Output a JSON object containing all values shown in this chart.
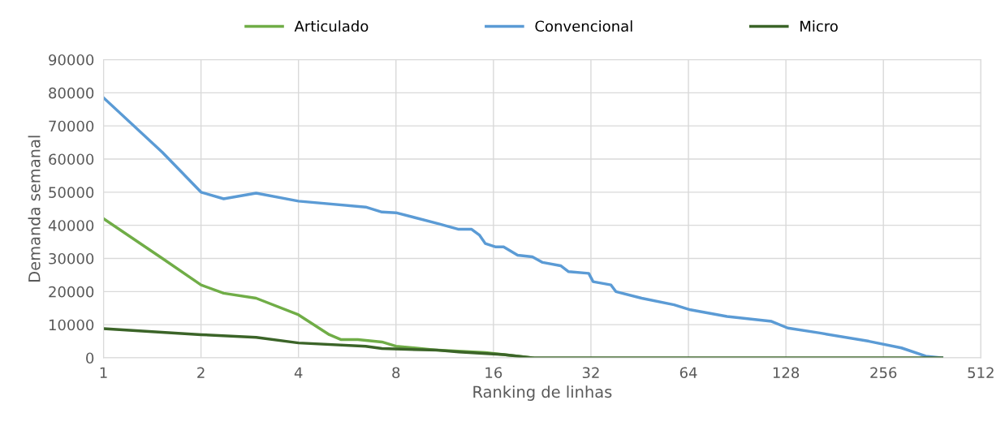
{
  "chart_data": {
    "type": "line",
    "xlabel": "Ranking de linhas",
    "ylabel": "Demanda semanal",
    "log": "x",
    "xlim": [
      1,
      512
    ],
    "xticks": [
      1,
      2,
      4,
      8,
      16,
      32,
      64,
      128,
      256,
      512
    ],
    "ylim": [
      0,
      90000
    ],
    "yticks": [
      0,
      10000,
      20000,
      30000,
      40000,
      50000,
      60000,
      70000,
      80000,
      90000
    ],
    "grid": true,
    "legend": "top",
    "marker": "none",
    "line_style": "solid",
    "series": [
      {
        "name": "Articulado",
        "color": "#70ad47",
        "x": [
          1,
          1.52,
          2,
          2.35,
          2.96,
          4,
          4.98,
          5.42,
          6.1,
          7.24,
          8,
          10.8,
          15.1,
          17.2,
          21.1
        ],
        "values": [
          42000,
          30000,
          22000,
          19500,
          18000,
          13000,
          7000,
          5500,
          5500,
          4800,
          3500,
          2300,
          1600,
          1000,
          0
        ]
      },
      {
        "name": "Convencional",
        "color": "#5b9bd5",
        "x": [
          1,
          1.52,
          2,
          2.35,
          2.96,
          4,
          6.45,
          7.24,
          8,
          10.8,
          12.5,
          13.7,
          14.5,
          15.1,
          16.2,
          17.2,
          19.0,
          21.1,
          22.7,
          25.8,
          27.3,
          31.5,
          32.5,
          36.9,
          38.2,
          45.9,
          57.8,
          64.9,
          84.2,
          115.6,
          129.7,
          163,
          231,
          291,
          346,
          388
        ],
        "values": [
          78500,
          62000,
          50000,
          48000,
          49700,
          47300,
          45500,
          44000,
          43800,
          40500,
          38800,
          38800,
          37000,
          34500,
          33500,
          33500,
          31000,
          30500,
          28800,
          27800,
          26000,
          25500,
          23000,
          22000,
          20000,
          18000,
          16000,
          14500,
          12500,
          11000,
          9000,
          7500,
          5000,
          3000,
          500,
          0
        ]
      },
      {
        "name": "Micro",
        "color": "#3b6428",
        "x": [
          1,
          2,
          2.96,
          4,
          6.45,
          7.24,
          10.8,
          12.5,
          17.2,
          21.1,
          388
        ],
        "values": [
          8800,
          7000,
          6200,
          4500,
          3500,
          2800,
          2300,
          1800,
          1000,
          0,
          0
        ]
      }
    ]
  }
}
